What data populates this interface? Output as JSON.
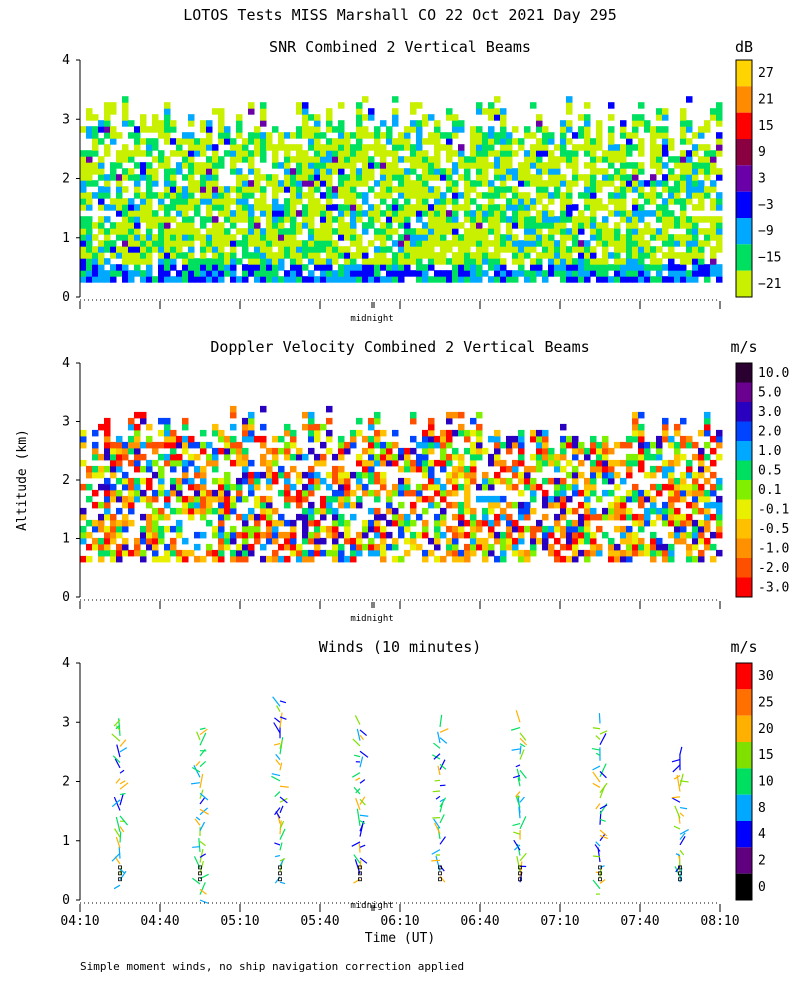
{
  "title": "LOTOS Tests MISS Marshall CO  22 Oct 2021 Day 295",
  "footnote": "Simple moment winds, no ship navigation correction applied",
  "chart_data": [
    {
      "type": "heatmap",
      "title": "SNR Combined 2 Vertical Beams",
      "ylabel": "",
      "ylim": [
        0,
        4
      ],
      "yticks": [
        "0",
        "1",
        "2",
        "3",
        "4"
      ],
      "midnight_label": "midnight",
      "colorbar": {
        "unit": "dB",
        "labels": [
          "27",
          "21",
          "15",
          "9",
          "3",
          "−3",
          "−9",
          "−15",
          "−21"
        ],
        "colors": [
          "#ffd400",
          "#ff8c00",
          "#ff0000",
          "#8b0040",
          "#6a00a8",
          "#0000ff",
          "#00a8ff",
          "#00e060",
          "#c8f000"
        ]
      },
      "data_top_km": 3.3,
      "data_bottom_km": 0.25
    },
    {
      "type": "heatmap",
      "title": "Doppler Velocity Combined 2 Vertical Beams",
      "ylabel": "Altitude (km)",
      "ylim": [
        0,
        4
      ],
      "yticks": [
        "0",
        "1",
        "2",
        "3",
        "4"
      ],
      "midnight_label": "midnight",
      "colorbar": {
        "unit": "m/s",
        "labels": [
          "10.0",
          "5.0",
          "3.0",
          "2.0",
          "1.0",
          "0.5",
          "0.1",
          "-0.1",
          "-0.5",
          "-1.0",
          "-2.0",
          "-3.0"
        ],
        "colors": [
          "#2a0030",
          "#6a0090",
          "#2a00c0",
          "#0044ff",
          "#00a8ff",
          "#00e060",
          "#80f000",
          "#e8f000",
          "#ffc000",
          "#ff9000",
          "#ff5000",
          "#ff0000"
        ]
      },
      "data_top_km": 3.2,
      "data_bottom_km": 0.6
    },
    {
      "type": "scatter",
      "title": "Winds (10 minutes)",
      "xlabel": "Time (UT)",
      "ylim": [
        0,
        4
      ],
      "yticks": [
        "0",
        "1",
        "2",
        "3",
        "4"
      ],
      "xticks": [
        "04:10",
        "04:40",
        "05:10",
        "05:40",
        "06:10",
        "06:40",
        "07:10",
        "07:40",
        "08:10"
      ],
      "midnight_label": "midnight",
      "profile_times": [
        "04:25",
        "04:55",
        "05:25",
        "05:55",
        "06:25",
        "06:55",
        "07:25",
        "07:55"
      ],
      "colorbar": {
        "unit": "m/s",
        "labels": [
          "30",
          "25",
          "20",
          "15",
          "10",
          "8",
          "4",
          "2",
          "0"
        ],
        "colors": [
          "#ff0000",
          "#ff7000",
          "#ffb000",
          "#80e000",
          "#00e060",
          "#00a8ff",
          "#0000ff",
          "#600080",
          "#000000"
        ]
      },
      "profiles": [
        {
          "top_km": 3.1,
          "bottom_km": 0.25
        },
        {
          "top_km": 2.9,
          "bottom_km": 0.0
        },
        {
          "top_km": 3.4,
          "bottom_km": 0.3
        },
        {
          "top_km": 3.0,
          "bottom_km": 0.35
        },
        {
          "top_km": 3.0,
          "bottom_km": 0.4
        },
        {
          "top_km": 3.0,
          "bottom_km": 0.3
        },
        {
          "top_km": 3.0,
          "bottom_km": 0.1
        },
        {
          "top_km": 2.5,
          "bottom_km": 0.3
        }
      ]
    }
  ]
}
